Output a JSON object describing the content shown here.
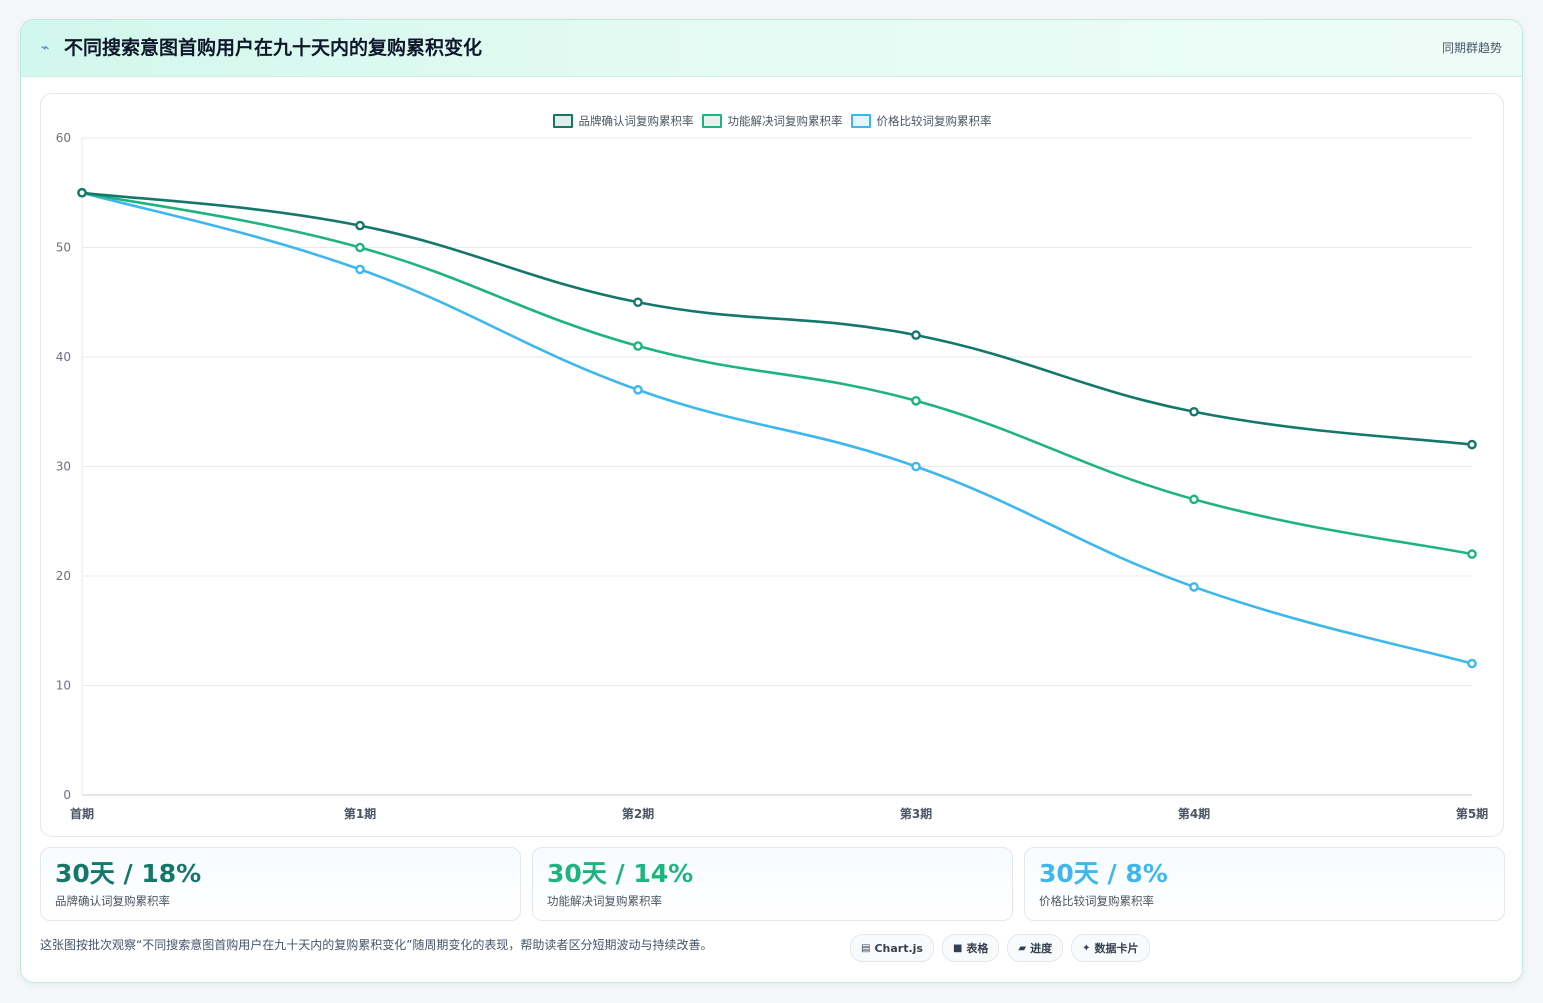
{
  "header": {
    "icon": "bolt-icon",
    "icon_glyph": "⌁",
    "title": "不同搜索意图首购用户在九十天内的复购累积变化",
    "tag": "同期群趋势"
  },
  "chart_data": {
    "type": "line",
    "categories": [
      "首期",
      "第1期",
      "第2期",
      "第3期",
      "第4期",
      "第5期"
    ],
    "series": [
      {
        "name": "品牌确认词复购累积率",
        "color": "#13776a",
        "values": [
          55,
          52,
          45,
          42,
          35,
          32
        ]
      },
      {
        "name": "功能解决词复购累积率",
        "color": "#1db57d",
        "values": [
          55,
          50,
          41,
          36,
          27,
          22
        ]
      },
      {
        "name": "价格比较词复购累积率",
        "color": "#3db7f0",
        "values": [
          55,
          48,
          37,
          30,
          19,
          12
        ]
      }
    ],
    "ylim": [
      0,
      60
    ],
    "yticks": [
      0,
      10,
      20,
      30,
      40,
      50,
      60
    ],
    "grid": true,
    "legend": "top-center",
    "curve": "smooth"
  },
  "stats": [
    {
      "value": "30天 / 18%",
      "label": "品牌确认词复购累积率",
      "color": "#13776a"
    },
    {
      "value": "30天 / 14%",
      "label": "功能解决词复购累积率",
      "color": "#1db57d"
    },
    {
      "value": "30天 / 8%",
      "label": "价格比较词复购累积率",
      "color": "#3db7f0"
    }
  ],
  "footnote": "这张图按批次观察“不同搜索意图首购用户在九十天内的复购累积变化”随周期变化的表现，帮助读者区分短期波动与持续改善。",
  "pills": [
    {
      "icon": "chart-icon",
      "glyph": "▤",
      "label": "Chart.js"
    },
    {
      "icon": "table-icon",
      "glyph": "■",
      "label": "表格"
    },
    {
      "icon": "progress-icon",
      "glyph": "▰",
      "label": "进度"
    },
    {
      "icon": "card-icon",
      "glyph": "✦",
      "label": "数据卡片"
    }
  ]
}
